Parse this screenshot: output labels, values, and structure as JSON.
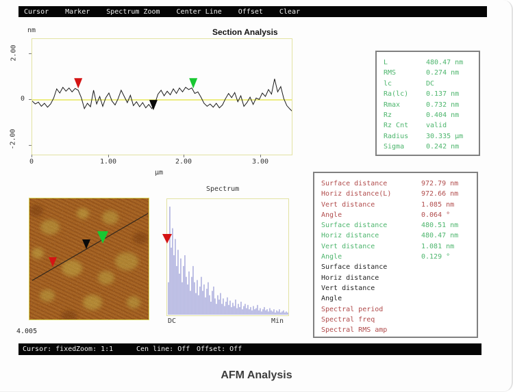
{
  "menu_bar": {
    "items": [
      "Cursor",
      "Marker",
      "Spectrum Zoom",
      "Center Line",
      "Offset",
      "Clear"
    ]
  },
  "status_bar": {
    "items": [
      "Cursor: fixed",
      "Zoom: 1:1",
      "Cen line: Off",
      "Offset: Off"
    ]
  },
  "section": {
    "title": "Section Analysis",
    "y_unit": "nm",
    "x_unit": "µm",
    "y_ticks": [
      "2.00",
      "0",
      "-2.00"
    ],
    "x_ticks": [
      "0",
      "1.00",
      "2.00",
      "3.00"
    ]
  },
  "roughness_panel": {
    "rows": [
      {
        "label": "L",
        "value": "480.47 nm"
      },
      {
        "label": "RMS",
        "value": "0.274 nm"
      },
      {
        "label": "lc",
        "value": "DC"
      },
      {
        "label": "Ra(lc)",
        "value": "0.137 nm"
      },
      {
        "label": "Rmax",
        "value": "0.732 nm"
      },
      {
        "label": "Rz",
        "value": "0.404 nm"
      },
      {
        "label": "Rz Cnt",
        "value": "valid"
      },
      {
        "label": "Radius",
        "value": "30.335 µm"
      },
      {
        "label": "Sigma",
        "value": "0.242 nm"
      }
    ]
  },
  "measure_panel": {
    "rows": [
      {
        "label": "Surface distance",
        "value": "972.79 nm",
        "color": "red"
      },
      {
        "label": "Horiz distance(L)",
        "value": "972.66 nm",
        "color": "red"
      },
      {
        "label": "Vert distance",
        "value": "1.085 nm",
        "color": "red"
      },
      {
        "label": "Angle",
        "value": "0.064 °",
        "color": "red"
      },
      {
        "label": "Surface distance",
        "value": "480.51 nm",
        "color": "green"
      },
      {
        "label": "Horiz distance",
        "value": "480.47 nm",
        "color": "green"
      },
      {
        "label": "Vert distance",
        "value": "1.081 nm",
        "color": "green"
      },
      {
        "label": "Angle",
        "value": "0.129 °",
        "color": "green"
      },
      {
        "label": "Surface distance",
        "value": "",
        "color": "black"
      },
      {
        "label": "Horiz distance",
        "value": "",
        "color": "black"
      },
      {
        "label": "Vert distance",
        "value": "",
        "color": "black"
      },
      {
        "label": "Angle",
        "value": "",
        "color": "black"
      },
      {
        "label": "Spectral period",
        "value": "",
        "color": "red"
      },
      {
        "label": "Spectral freq",
        "value": "",
        "color": "red"
      },
      {
        "label": "Spectral RMS amp",
        "value": "",
        "color": "red"
      }
    ]
  },
  "spectrum": {
    "title": "Spectrum",
    "left_label": "DC",
    "right_label": "Min"
  },
  "image_scale_label": "4.005",
  "caption": "AFM Analysis",
  "colors": {
    "plot_border": "#e2e2a2",
    "center_line": "#e6e658",
    "trace": "#1a1a1a",
    "spectrum_bar": "#a9abdd",
    "marker_red": "#d41414",
    "marker_green": "#19c832",
    "marker_black": "#0a0a0a",
    "text_green": "#4cb56c",
    "text_red": "#b04a4a"
  },
  "chart_data": [
    {
      "type": "line",
      "title": "Section Analysis",
      "xlabel": "µm",
      "ylabel": "nm",
      "xlim": [
        0,
        3.39
      ],
      "ylim": [
        -2.66,
        2.66
      ],
      "y_gridline_at": 0,
      "points": [
        [
          0.0,
          -0.05
        ],
        [
          0.04,
          -0.18
        ],
        [
          0.08,
          -0.1
        ],
        [
          0.12,
          -0.28
        ],
        [
          0.16,
          -0.15
        ],
        [
          0.2,
          -0.32
        ],
        [
          0.24,
          -0.18
        ],
        [
          0.28,
          0.08
        ],
        [
          0.32,
          0.48
        ],
        [
          0.36,
          0.3
        ],
        [
          0.4,
          0.55
        ],
        [
          0.44,
          0.38
        ],
        [
          0.48,
          0.52
        ],
        [
          0.52,
          0.35
        ],
        [
          0.56,
          0.5
        ],
        [
          0.6,
          0.42
        ],
        [
          0.64,
          0.1
        ],
        [
          0.68,
          -0.38
        ],
        [
          0.72,
          -0.15
        ],
        [
          0.76,
          -0.3
        ],
        [
          0.8,
          0.42
        ],
        [
          0.84,
          -0.18
        ],
        [
          0.88,
          0.15
        ],
        [
          0.92,
          -0.28
        ],
        [
          0.96,
          0.1
        ],
        [
          1.0,
          0.3
        ],
        [
          1.04,
          -0.05
        ],
        [
          1.08,
          -0.22
        ],
        [
          1.12,
          0.05
        ],
        [
          1.16,
          0.42
        ],
        [
          1.2,
          0.15
        ],
        [
          1.24,
          -0.12
        ],
        [
          1.28,
          0.2
        ],
        [
          1.32,
          -0.25
        ],
        [
          1.36,
          -0.08
        ],
        [
          1.4,
          -0.3
        ],
        [
          1.44,
          -0.12
        ],
        [
          1.48,
          -0.35
        ],
        [
          1.52,
          -0.2
        ],
        [
          1.56,
          -0.38
        ],
        [
          1.6,
          -0.15
        ],
        [
          1.64,
          0.25
        ],
        [
          1.68,
          0.42
        ],
        [
          1.72,
          0.18
        ],
        [
          1.76,
          0.38
        ],
        [
          1.8,
          0.22
        ],
        [
          1.84,
          0.48
        ],
        [
          1.88,
          0.28
        ],
        [
          1.92,
          0.52
        ],
        [
          1.96,
          0.35
        ],
        [
          2.0,
          0.55
        ],
        [
          2.04,
          0.45
        ],
        [
          2.08,
          0.52
        ],
        [
          2.12,
          0.28
        ],
        [
          2.16,
          0.35
        ],
        [
          2.2,
          0.12
        ],
        [
          2.24,
          -0.15
        ],
        [
          2.28,
          -0.28
        ],
        [
          2.32,
          -0.18
        ],
        [
          2.36,
          -0.32
        ],
        [
          2.4,
          -0.15
        ],
        [
          2.44,
          -0.35
        ],
        [
          2.48,
          -0.22
        ],
        [
          2.52,
          0.05
        ],
        [
          2.56,
          0.28
        ],
        [
          2.6,
          0.1
        ],
        [
          2.64,
          0.32
        ],
        [
          2.68,
          -0.08
        ],
        [
          2.72,
          0.18
        ],
        [
          2.76,
          -0.28
        ],
        [
          2.8,
          -0.12
        ],
        [
          2.84,
          0.12
        ],
        [
          2.88,
          -0.2
        ],
        [
          2.92,
          0.08
        ],
        [
          2.96,
          0.02
        ],
        [
          3.0,
          0.3
        ],
        [
          3.04,
          0.15
        ],
        [
          3.08,
          0.45
        ],
        [
          3.12,
          0.25
        ],
        [
          3.16,
          0.92
        ],
        [
          3.2,
          0.35
        ],
        [
          3.24,
          0.58
        ],
        [
          3.28,
          0.05
        ],
        [
          3.32,
          -0.25
        ],
        [
          3.36,
          -0.4
        ],
        [
          3.39,
          -0.5
        ]
      ],
      "markers": [
        {
          "name": "red-cursor-marker",
          "color": "#d41414",
          "x_um": 0.6,
          "tip_nm": 0.5
        },
        {
          "name": "black-cursor-marker",
          "color": "#0a0a0a",
          "x_um": 1.58,
          "tip_nm": -0.45
        },
        {
          "name": "green-cursor-marker",
          "color": "#19c832",
          "x_um": 2.1,
          "tip_nm": 0.5
        }
      ]
    },
    {
      "type": "bar",
      "title": "Spectrum",
      "xlabel_left": "DC",
      "xlabel_right": "Min",
      "ylim": [
        0,
        1
      ],
      "values": [
        0.3,
        1.0,
        0.62,
        0.8,
        0.55,
        0.7,
        0.45,
        0.6,
        0.38,
        0.52,
        0.3,
        0.45,
        0.55,
        0.35,
        0.28,
        0.4,
        0.22,
        0.35,
        0.45,
        0.3,
        0.2,
        0.32,
        0.18,
        0.26,
        0.35,
        0.22,
        0.28,
        0.16,
        0.24,
        0.3,
        0.18,
        0.12,
        0.22,
        0.26,
        0.15,
        0.1,
        0.18,
        0.14,
        0.2,
        0.1,
        0.15,
        0.08,
        0.12,
        0.16,
        0.09,
        0.13,
        0.07,
        0.11,
        0.08,
        0.14,
        0.06,
        0.1,
        0.07,
        0.12,
        0.05,
        0.08,
        0.1,
        0.06,
        0.09,
        0.05,
        0.07,
        0.04,
        0.08,
        0.05,
        0.06,
        0.09,
        0.04,
        0.06,
        0.03,
        0.05,
        0.07,
        0.04,
        0.05,
        0.03,
        0.06,
        0.04,
        0.03,
        0.05,
        0.02,
        0.04,
        0.03,
        0.05,
        0.02,
        0.03,
        0.04,
        0.02,
        0.03,
        0.02
      ],
      "marker": {
        "name": "red-spectrum-marker",
        "color": "#d41414",
        "position": "DC"
      }
    }
  ]
}
